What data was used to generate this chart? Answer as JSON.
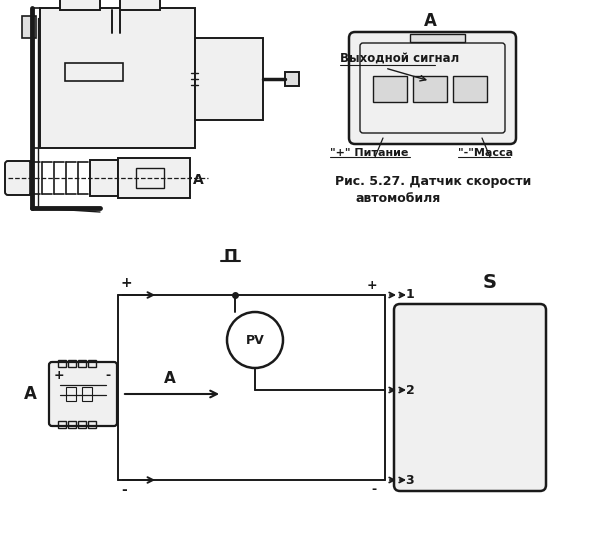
{
  "bg_color": "#ffffff",
  "line_color": "#1a1a1a",
  "label_output": "Выходной сигнал",
  "label_plus_питание": "\"+\" Питание",
  "label_minus_масса": "\"-\"Масса",
  "caption_line1": "Рис. 5.27. Датчик скорости",
  "caption_line2": "автомобиля",
  "label_A": "A",
  "label_II": "Π",
  "label_A_left": "A",
  "label_A_arrow": "A",
  "label_S": "S",
  "label_PV": "PV",
  "label_plus": "+",
  "label_minus": "-",
  "label_1": "1",
  "label_2": "2",
  "label_3": "3"
}
